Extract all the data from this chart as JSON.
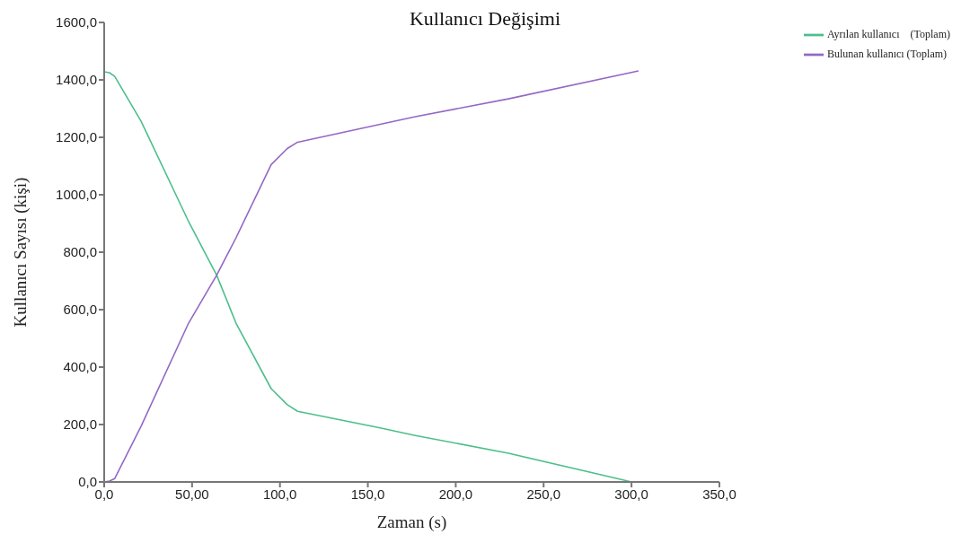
{
  "chart_data": {
    "type": "line",
    "title": "Kullanıcı Değişimi",
    "xlabel": "Zaman (s)",
    "ylabel": "Kullanıcı Sayısı (kişi)",
    "xlim": [
      0,
      350
    ],
    "xticks": [
      {
        "value": 0,
        "label": "0,0"
      },
      {
        "value": 50,
        "label": "50,00"
      },
      {
        "value": 100,
        "label": "100,0"
      },
      {
        "value": 150,
        "label": "150,0"
      },
      {
        "value": 200,
        "label": "200,0"
      },
      {
        "value": 250,
        "label": "250,0"
      },
      {
        "value": 300,
        "label": "300,0"
      },
      {
        "value": 350,
        "label": "350,0"
      }
    ],
    "ylim": [
      0,
      1600
    ],
    "yticks": [
      {
        "value": 0,
        "label": "0,0"
      },
      {
        "value": 200,
        "label": "200,0"
      },
      {
        "value": 400,
        "label": "400,0"
      },
      {
        "value": 600,
        "label": "600,0"
      },
      {
        "value": 800,
        "label": "800,0"
      },
      {
        "value": 1000,
        "label": "1000,0"
      },
      {
        "value": 1200,
        "label": "1200,0"
      },
      {
        "value": 1400,
        "label": "1400,0"
      },
      {
        "value": 1600,
        "label": "1600,0"
      }
    ],
    "grid": false,
    "legend": "top right",
    "marker": "none",
    "line_style": "solid",
    "series": [
      {
        "name": "Ayrılan kullanıcı    (Toplam)",
        "color": "#4cbf8c",
        "x": [
          0,
          3,
          6,
          21,
          48,
          64,
          75,
          95,
          104,
          110,
          157,
          177,
          230,
          292,
          300
        ],
        "values": [
          1428,
          1425,
          1412,
          1256,
          907,
          720,
          553,
          325,
          270,
          246,
          188,
          162,
          100,
          12,
          0
        ]
      },
      {
        "name": "Bulunan kullanıcı (Toplam)",
        "color": "#9468c4",
        "x": [
          0,
          3,
          6,
          21,
          48,
          64,
          75,
          95,
          104,
          110,
          177,
          230,
          304
        ],
        "values": [
          0,
          3,
          12,
          194,
          553,
          720,
          850,
          1105,
          1160,
          1183,
          1272,
          1334,
          1431
        ]
      }
    ]
  }
}
